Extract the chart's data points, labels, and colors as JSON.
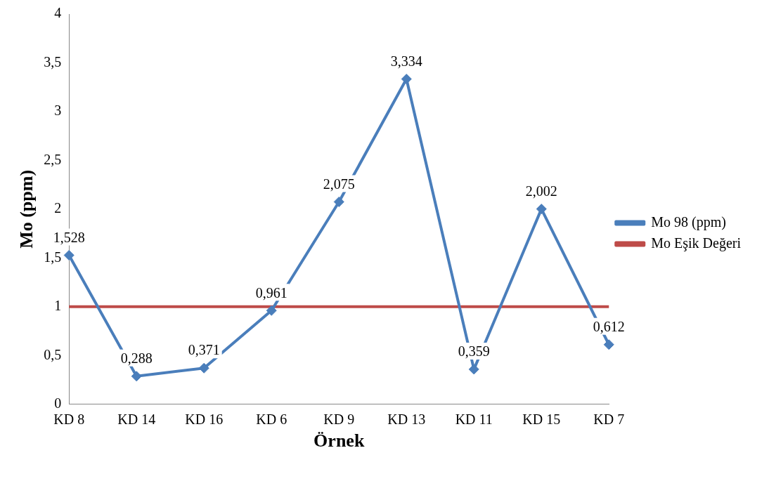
{
  "chart_data": {
    "type": "line",
    "xlabel": "Örnek",
    "ylabel": "Mo (ppm)",
    "categories": [
      "KD 8",
      "KD 14",
      "KD 16",
      "KD 6",
      "KD 9",
      "KD 13",
      "KD 11",
      "KD 15",
      "KD 7"
    ],
    "series": [
      {
        "name": "Mo 98 (ppm)",
        "color": "#4a7ebb",
        "marker": "diamond",
        "values": [
          1.528,
          0.288,
          0.371,
          0.961,
          2.075,
          3.334,
          0.359,
          2.002,
          0.612
        ],
        "value_labels": [
          "1,528",
          "0,288",
          "0,371",
          "0,961",
          "2,075",
          "3,334",
          "0,359",
          "2,002",
          "0,612"
        ]
      },
      {
        "name": "Mo Eşik Değeri",
        "color": "#be4b48",
        "marker": "none",
        "values": [
          1,
          1,
          1,
          1,
          1,
          1,
          1,
          1,
          1
        ]
      }
    ],
    "ylim": [
      0,
      4
    ],
    "yticks": [
      0,
      {
        "value": 0.5,
        "label": "0,5"
      },
      1,
      {
        "value": 1.5,
        "label": "1,5"
      },
      2,
      {
        "value": 2.5,
        "label": "2,5"
      },
      3,
      {
        "value": 3.5,
        "label": "3,5"
      },
      4
    ],
    "grid": false,
    "legend": "right",
    "line_style": "solid"
  }
}
